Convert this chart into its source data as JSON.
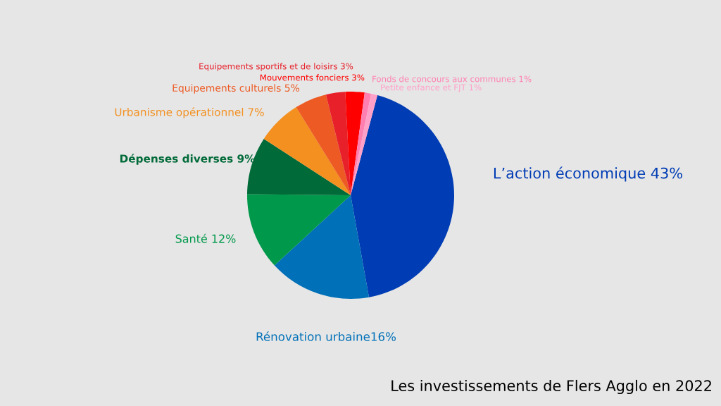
{
  "chart_data": {
    "type": "pie",
    "title": "Les investissements de Flers Agglo en 2022",
    "categories": [
      "L’action économique 43%",
      "Rénovation urbaine16%",
      "Santé 12%",
      "Dépenses diverses 9%",
      "Urbanisme opérationnel 7%",
      "Equipements culturels 5%",
      "Equipements sportifs et de loisirs 3%",
      "Mouvements fonciers 3%",
      "Fonds de concours aux communes 1%",
      "Petite enfance et FJT 1%"
    ],
    "values": [
      43,
      16,
      12,
      9,
      7,
      5,
      3,
      3,
      1,
      1
    ],
    "colors": [
      "#003cb4",
      "#0070b8",
      "#00984a",
      "#006a38",
      "#f39020",
      "#ee5a24",
      "#e8202a",
      "#ff0000",
      "#ff80b0",
      "#ffa0c8"
    ]
  }
}
